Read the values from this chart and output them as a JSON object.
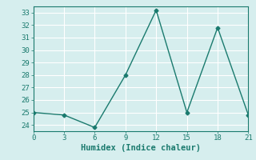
{
  "x": [
    0,
    3,
    6,
    9,
    12,
    15,
    18,
    21
  ],
  "y": [
    25.0,
    24.8,
    23.8,
    28.0,
    33.2,
    25.0,
    31.8,
    24.8
  ],
  "xlabel": "Humidex (Indice chaleur)",
  "xlim": [
    0,
    21
  ],
  "ylim": [
    23.5,
    33.5
  ],
  "yticks": [
    24,
    25,
    26,
    27,
    28,
    29,
    30,
    31,
    32,
    33
  ],
  "xticks": [
    0,
    3,
    6,
    9,
    12,
    15,
    18,
    21
  ],
  "line_color": "#1a7a6e",
  "marker": "D",
  "marker_size": 2.5,
  "bg_color": "#d6eeee",
  "grid_color": "#ffffff",
  "tick_label_size": 6.5,
  "xlabel_size": 7.5,
  "lw": 1.0
}
